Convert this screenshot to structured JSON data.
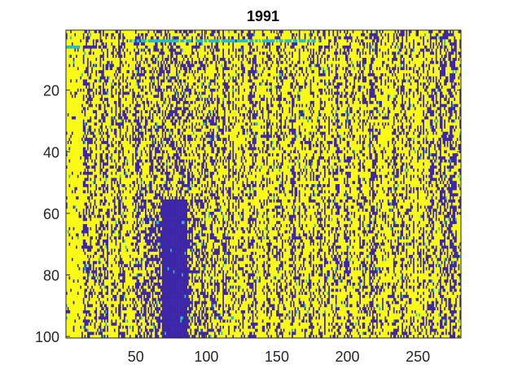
{
  "chart_data": {
    "type": "heatmap",
    "title": "1991",
    "xlabel": "",
    "ylabel": "",
    "columns": 280,
    "rows": 100,
    "xlim": [
      0.5,
      280.5
    ],
    "ylim": [
      0.5,
      100.5
    ],
    "y_direction": "reversed",
    "x_ticks": [
      50,
      100,
      150,
      200,
      250
    ],
    "y_ticks": [
      20,
      40,
      60,
      80,
      100
    ],
    "x_tick_labels": [
      "50",
      "100",
      "150",
      "200",
      "250"
    ],
    "y_tick_labels": [
      "20",
      "40",
      "60",
      "80",
      "100"
    ],
    "levels": [
      0,
      1,
      2
    ],
    "colormap": {
      "0": "#3e26a8",
      "1": "#24bfbf",
      "2": "#f9fb14"
    },
    "grid": false,
    "values_note": ""
  }
}
